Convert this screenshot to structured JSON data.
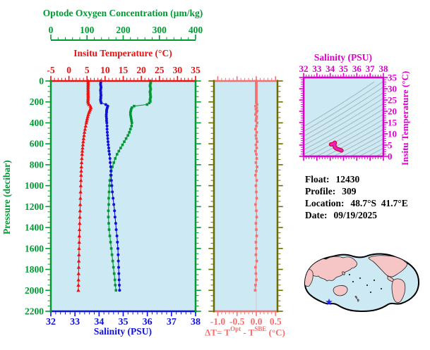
{
  "figure": {
    "plot_bg": "#cde9f3",
    "axes": {
      "oxygen": {
        "title": "Optode Oxygen Concentration (µm/kg)",
        "ticks": [
          0,
          100,
          200,
          300,
          400
        ],
        "range": [
          0,
          400
        ],
        "color": "#009933"
      },
      "temperature": {
        "title": "Insitu Temperature (°C)",
        "ticks": [
          -5,
          0,
          5,
          10,
          15,
          20,
          25,
          30,
          35
        ],
        "range": [
          -5,
          35
        ],
        "color": "#ee1111"
      },
      "salinity": {
        "title": "Salinity (PSU)",
        "ticks": [
          32,
          33,
          34,
          35,
          36,
          37,
          38
        ],
        "range": [
          32,
          38
        ],
        "color": "#1111dd"
      },
      "pressure": {
        "title": "Pressure (decibar)",
        "ticks": [
          0,
          200,
          400,
          600,
          800,
          1000,
          1200,
          1400,
          1600,
          1800,
          2000,
          2200
        ],
        "range": [
          0,
          2200
        ],
        "color": "#009933"
      },
      "delta_t": {
        "title_pre": "ΔT= T",
        "sup1": "Opt",
        "title_mid": " - T",
        "sup2": "SBE",
        "title_post": " (°C)",
        "tick_labels": [
          "-1.0",
          "-0.5",
          "0.0",
          "0.5"
        ],
        "tick_values": [
          -1.0,
          -0.5,
          0.0,
          0.5
        ],
        "range": [
          -1.1,
          0.55
        ],
        "color": "#f47070",
        "spine_color": "#6b6b00"
      },
      "ts": {
        "sal_title": "Salinity (PSU)",
        "temp_title": "Insitu Temperature (°C)",
        "sal_ticks": [
          32,
          33,
          34,
          35,
          36,
          37,
          38
        ],
        "temp_ticks": [
          35,
          30,
          25,
          20,
          15,
          10,
          5,
          0
        ],
        "sal_range": [
          32,
          38
        ],
        "temp_range": [
          0,
          35
        ],
        "color": "#dd00cc",
        "contour_color": "#a4b6bd",
        "curve_outline": "#d01040",
        "curve_color": "#ee22cc"
      }
    },
    "info": {
      "rows": [
        {
          "label": "Float:",
          "value": "12430"
        },
        {
          "label": "Profile:",
          "value": "309"
        },
        {
          "label": "Location:",
          "value": "48.7°S  41.7°E"
        },
        {
          "label": "Date:",
          "value": "09/19/2025"
        }
      ]
    },
    "map": {
      "land_color": "#f6c6c6",
      "ocean_color": "#cde9f3",
      "outline_color": "#000000",
      "star_color": "#2222ee"
    }
  },
  "chart_data": {
    "type": "line",
    "pressure_dbar": [
      0,
      15,
      30,
      45,
      60,
      75,
      90,
      105,
      120,
      135,
      150,
      165,
      180,
      195,
      210,
      225,
      240,
      255,
      270,
      285,
      300,
      320,
      340,
      360,
      380,
      400,
      430,
      460,
      490,
      520,
      550,
      580,
      610,
      640,
      670,
      700,
      740,
      780,
      820,
      860,
      900,
      950,
      1000,
      1060,
      1120,
      1180,
      1240,
      1300,
      1360,
      1420,
      1480,
      1540,
      1600,
      1660,
      1720,
      1780,
      1840,
      1900,
      1950,
      2000
    ],
    "panels": [
      {
        "id": "main-profiles",
        "ylabel": "Pressure (decibar)",
        "ylim": [
          0,
          2200
        ],
        "y_inverted": true,
        "grid": false,
        "series": [
          {
            "name": "Insitu Temperature (°C)",
            "x_axis": "top",
            "xlim": [
              -5,
              35
            ],
            "color": "#ee1111",
            "marker": "triangle",
            "values": [
              5.32,
              5.3,
              5.31,
              5.29,
              5.3,
              5.28,
              5.31,
              5.3,
              5.29,
              5.3,
              5.32,
              5.3,
              5.28,
              5.26,
              5.35,
              5.55,
              5.95,
              6.05,
              5.9,
              5.7,
              5.55,
              5.35,
              5.2,
              5.05,
              4.92,
              4.8,
              4.62,
              4.45,
              4.3,
              4.18,
              4.05,
              3.95,
              3.86,
              3.78,
              3.7,
              3.64,
              3.57,
              3.5,
              3.45,
              3.4,
              3.36,
              3.32,
              3.28,
              3.22,
              3.17,
              3.12,
              3.07,
              3.02,
              2.97,
              2.92,
              2.88,
              2.84,
              2.8,
              2.77,
              2.73,
              2.7,
              2.67,
              2.64,
              2.62,
              2.6
            ]
          },
          {
            "name": "Salinity (PSU)",
            "x_axis": "bottom",
            "xlim": [
              32,
              38
            ],
            "color": "#1111dd",
            "marker": "circle",
            "values": [
              34.07,
              34.07,
              34.06,
              34.07,
              34.08,
              34.07,
              34.06,
              34.07,
              34.07,
              34.08,
              34.07,
              34.07,
              34.06,
              34.07,
              34.09,
              34.28,
              34.36,
              34.34,
              34.32,
              34.31,
              34.31,
              34.3,
              34.3,
              34.31,
              34.31,
              34.32,
              34.33,
              34.33,
              34.34,
              34.35,
              34.36,
              34.37,
              34.38,
              34.4,
              34.41,
              34.43,
              34.45,
              34.46,
              34.48,
              34.49,
              34.5,
              34.51,
              34.53,
              34.55,
              34.58,
              34.61,
              34.64,
              34.66,
              34.69,
              34.71,
              34.74,
              34.76,
              34.78,
              34.79,
              34.8,
              34.81,
              34.82,
              34.83,
              34.84,
              34.85
            ]
          },
          {
            "name": "Optode Oxygen Concentration (µm/kg)",
            "x_axis": "top-floating",
            "xlim": [
              0,
              400
            ],
            "color": "#009933",
            "marker": "square",
            "values": [
              275,
              276,
              275,
              274,
              275,
              276,
              275,
              274,
              275,
              275,
              276,
              275,
              274,
              275,
              272,
              266,
              230,
              224,
              222,
              221,
              220,
              220,
              221,
              222,
              223,
              224,
              223,
              220,
              217,
              213,
              208,
              203,
              198,
              193,
              188,
              183,
              178,
              174,
              170,
              167,
              165,
              163,
              162,
              161,
              160,
              160,
              159,
              159,
              160,
              161,
              163,
              165,
              167,
              169,
              171,
              173,
              175,
              177,
              178,
              180
            ]
          }
        ]
      },
      {
        "id": "delta-t",
        "xlabel": "ΔT= TOpt - TSBE (°C)",
        "xlim": [
          -1.0,
          0.5
        ],
        "series": [
          {
            "name": "ΔT",
            "color": "#f47070",
            "marker": "square",
            "values": [
              0,
              0,
              0,
              0,
              0,
              0,
              0,
              0,
              0,
              0,
              0,
              0,
              0,
              0,
              0,
              0.02,
              -0.02,
              0.01,
              -0.01,
              0.02,
              0,
              -0.02,
              0.01,
              0,
              -0.01,
              0.02,
              0,
              -0.02,
              0.01,
              -0.01,
              0,
              0.02,
              -0.01,
              0.01,
              -0.02,
              0,
              0.01,
              -0.01,
              0.02,
              0,
              -0.02,
              0.01,
              -0.01,
              0,
              0.01,
              -0.02,
              0,
              0.01,
              -0.01,
              0,
              0.01,
              -0.01,
              0,
              -0.01,
              0.01,
              -0.02,
              -0.01,
              0,
              -0.02,
              -0.03
            ]
          }
        ]
      },
      {
        "id": "ts-diagram",
        "xlabel": "Salinity (PSU)",
        "ylabel": "Insitu Temperature (°C)",
        "xlim": [
          32,
          38
        ],
        "ylim": [
          0,
          35
        ],
        "note": "magenta curve = temperature vs salinity of this profile, drawn over gray isopycnal contours",
        "series": [
          {
            "name": "T-S curve",
            "color": "#ee22cc"
          }
        ]
      }
    ]
  }
}
